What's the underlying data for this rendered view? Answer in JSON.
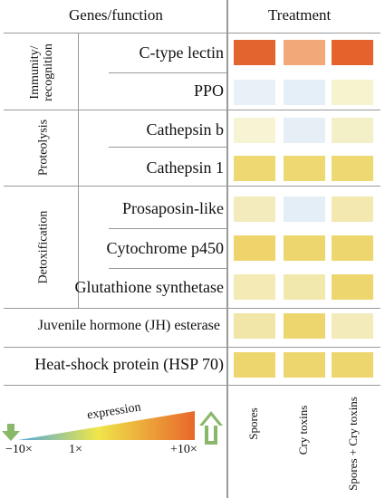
{
  "header": {
    "genes_label": "Genes/function",
    "treatment_label": "Treatment"
  },
  "groups": [
    {
      "label": "Immunity/ recognition",
      "line1": "Immunity/",
      "line2": "recognition"
    },
    {
      "label": "Proteolysis",
      "line1": "Proteolysis",
      "line2": ""
    },
    {
      "label": "Detoxification",
      "line1": "Detoxification",
      "line2": ""
    }
  ],
  "rows": [
    {
      "gene": "C-type lectin",
      "cells": [
        "#e2642e",
        "#f2a878",
        "#e5622c"
      ]
    },
    {
      "gene": "PPO",
      "cells": [
        "#e8f1f7",
        "#e5eff7",
        "#f6f3cf"
      ]
    },
    {
      "gene": "Cathepsin b",
      "cells": [
        "#f6f4d2",
        "#e6eff6",
        "#f3efc6"
      ]
    },
    {
      "gene": "Cathepsin 1",
      "cells": [
        "#eed872",
        "#eed872",
        "#eed872"
      ]
    },
    {
      "gene": "Prosaposin-like",
      "cells": [
        "#f3ebbb",
        "#e3eef6",
        "#f3e8b0"
      ]
    },
    {
      "gene": "Cytochrome p450",
      "cells": [
        "#eed46a",
        "#eed66f",
        "#eed66f"
      ]
    },
    {
      "gene": "Glutathione synthetase",
      "cells": [
        "#f3eab5",
        "#f1e8ac",
        "#eed66f"
      ]
    },
    {
      "gene": "Juvenile hormone (JH) esterase",
      "cells": [
        "#f1e6a8",
        "#eed66f",
        "#f3ebba"
      ]
    },
    {
      "gene": "Heat-shock protein (HSP 70)",
      "cells": [
        "#eed66f",
        "#eed66f",
        "#eed66f"
      ]
    }
  ],
  "treatments": [
    "Spores",
    "Cry toxins",
    "Spores + Cry toxins"
  ],
  "legend": {
    "label": "expression",
    "ticks": [
      "−10×",
      "1×",
      "+10×"
    ],
    "colors": [
      "#4da8de",
      "#f0e64a",
      "#e8672a"
    ]
  }
}
